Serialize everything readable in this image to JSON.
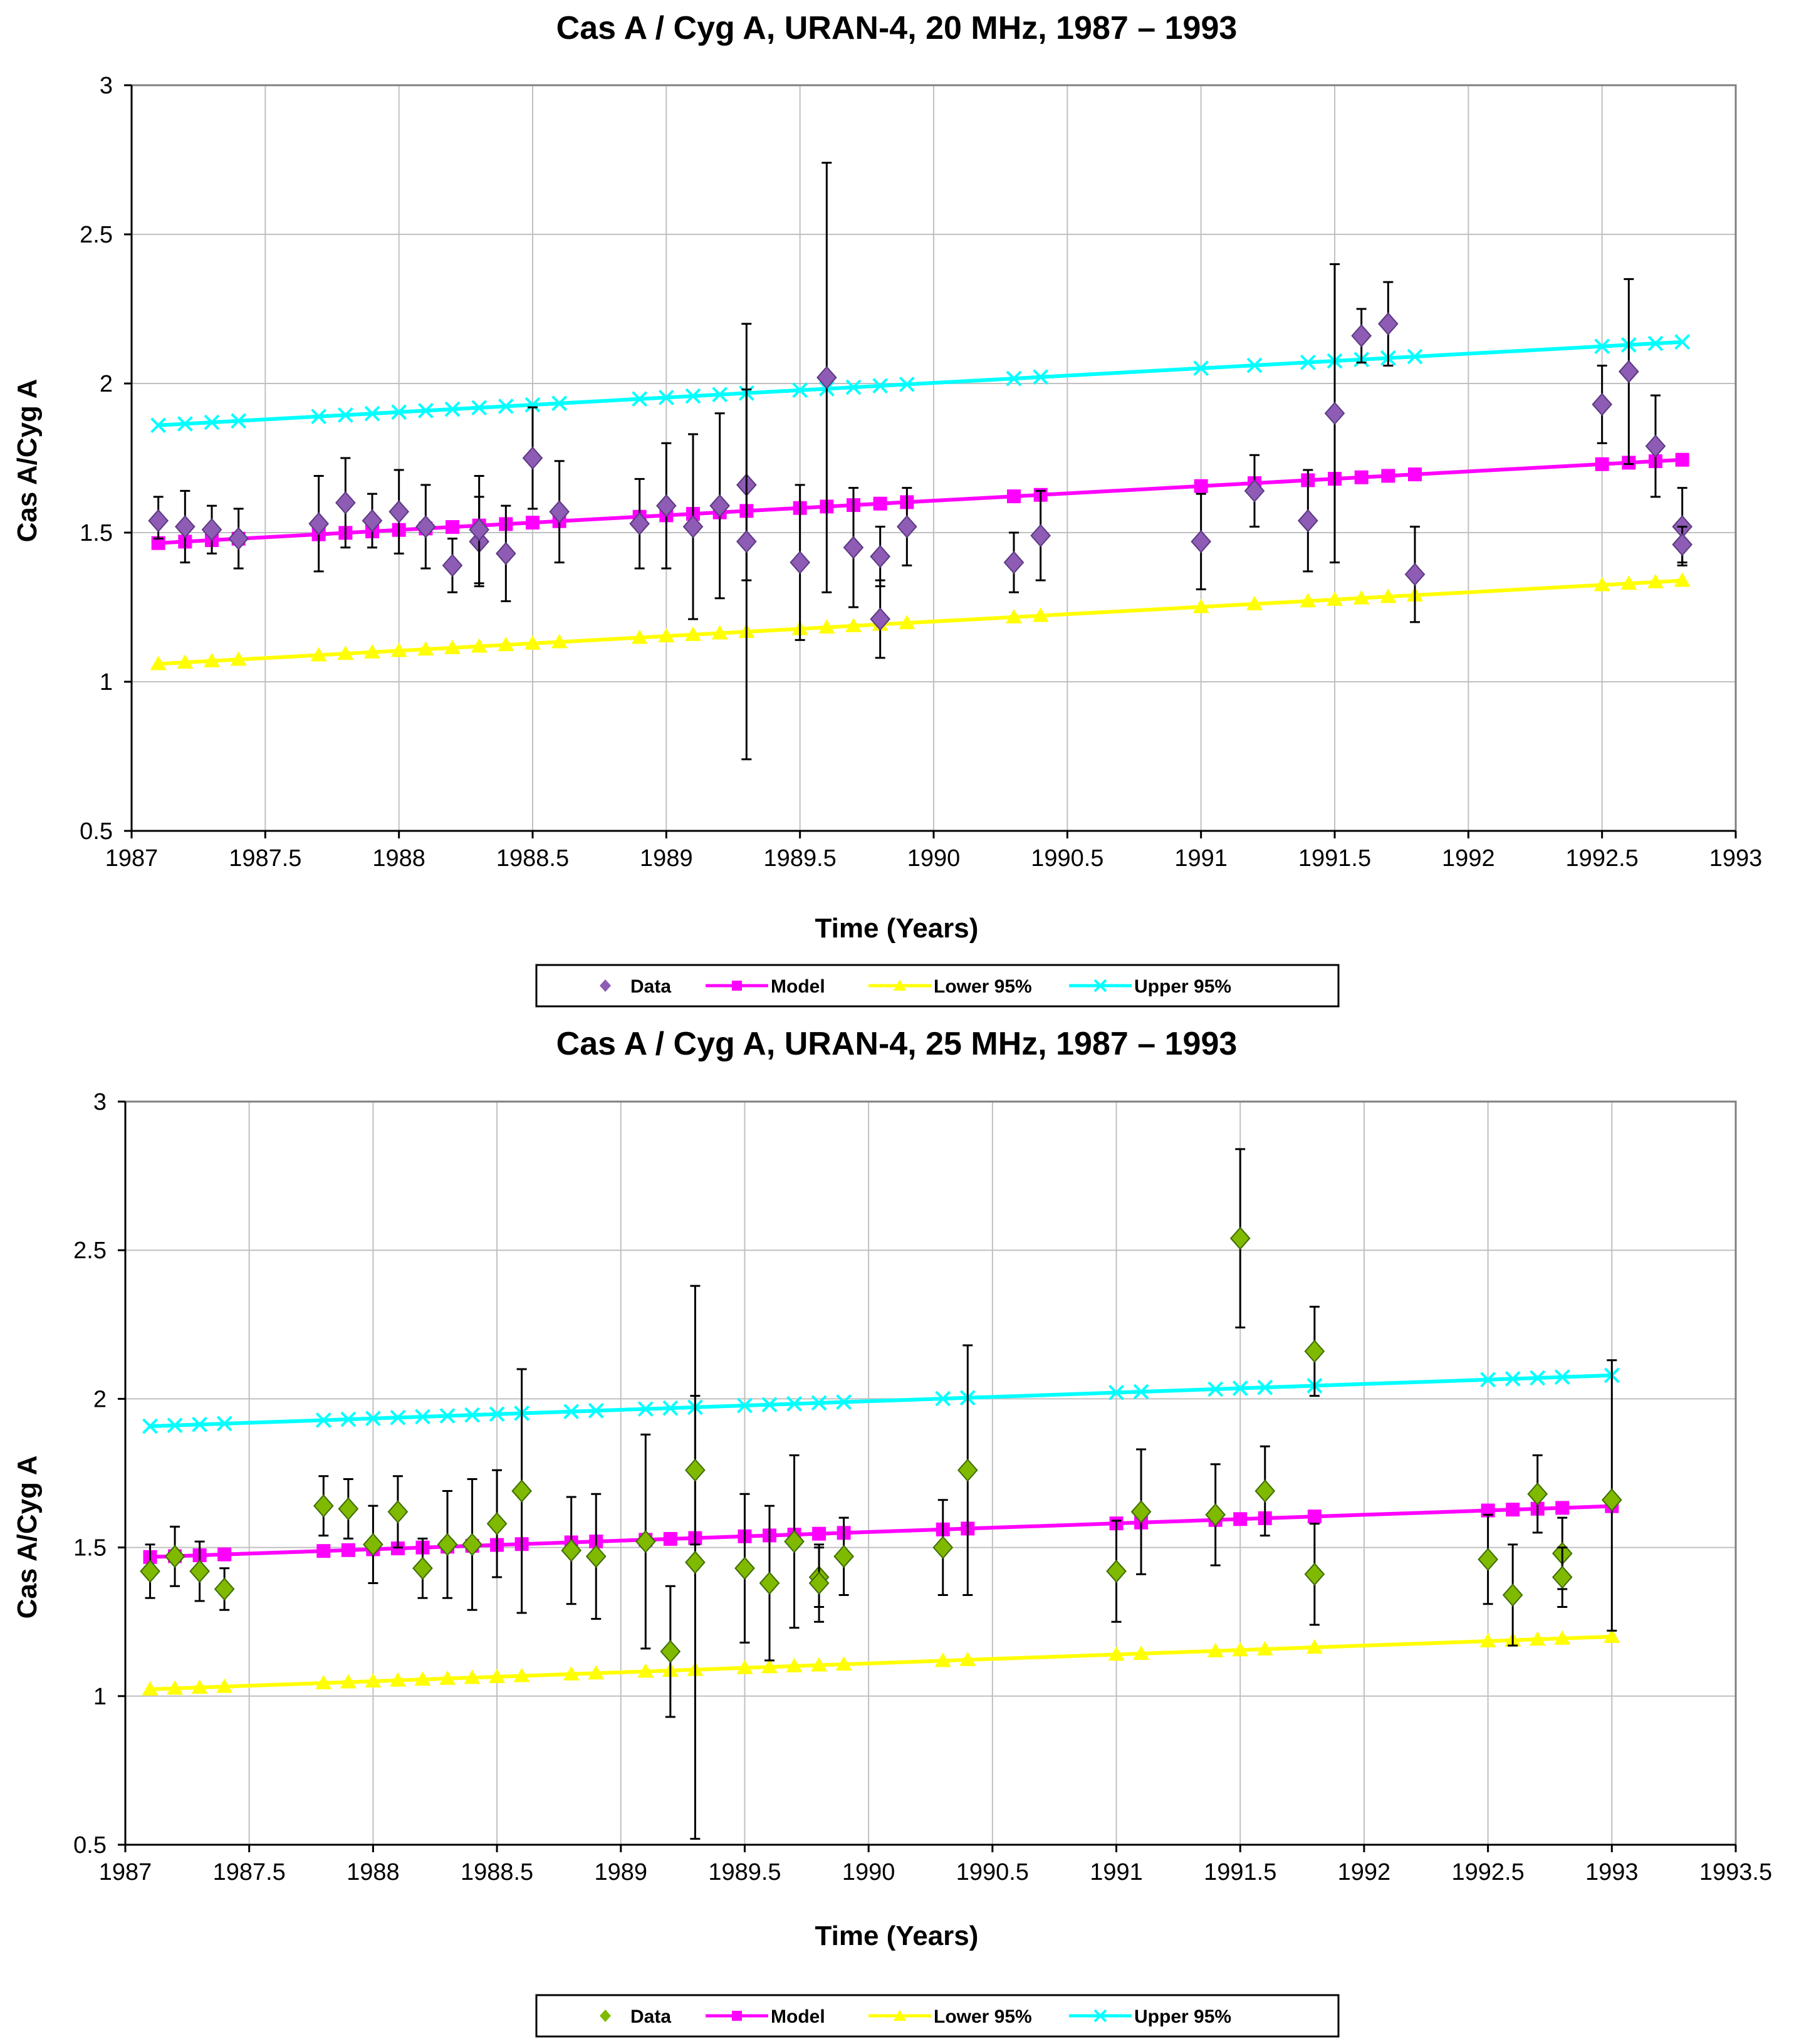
{
  "colors": {
    "data_top": "#8E5BB5",
    "data_bottom": "#7FBA00",
    "model": "#FF00FF",
    "lower": "#FFFF00",
    "upper": "#00FFFF",
    "grid": "#C0C0C0",
    "error_bar": "#000000"
  },
  "chart_data": [
    {
      "type": "scatter",
      "title": "Cas A / Cyg A, URAN-4, 20 MHz, 1987 – 1993",
      "xlabel": "Time (Years)",
      "ylabel": "Cas A/Cyg A",
      "xlim": [
        1987,
        1993
      ],
      "ylim": [
        0.5,
        3
      ],
      "xticks": [
        "1987",
        "1987.5",
        "1988",
        "1988.5",
        "1989",
        "1989.5",
        "1990",
        "1990.5",
        "1991",
        "1991.5",
        "1992",
        "1992.5",
        "1993"
      ],
      "yticks": [
        "0.5",
        "1",
        "1.5",
        "2",
        "2.5",
        "3"
      ],
      "grid": true,
      "legend": [
        "Data",
        "Model",
        "Lower 95%",
        "Upper 95%"
      ],
      "legend_position": "bottom",
      "data_points": [
        {
          "x": 1987.1,
          "y": 1.54,
          "lo": 1.48,
          "hi": 1.62
        },
        {
          "x": 1987.2,
          "y": 1.52,
          "lo": 1.4,
          "hi": 1.64
        },
        {
          "x": 1987.3,
          "y": 1.51,
          "lo": 1.43,
          "hi": 1.59
        },
        {
          "x": 1987.4,
          "y": 1.48,
          "lo": 1.38,
          "hi": 1.58
        },
        {
          "x": 1987.7,
          "y": 1.53,
          "lo": 1.37,
          "hi": 1.69
        },
        {
          "x": 1987.8,
          "y": 1.6,
          "lo": 1.45,
          "hi": 1.75
        },
        {
          "x": 1987.9,
          "y": 1.54,
          "lo": 1.45,
          "hi": 1.63
        },
        {
          "x": 1988.0,
          "y": 1.57,
          "lo": 1.43,
          "hi": 1.71
        },
        {
          "x": 1988.1,
          "y": 1.52,
          "lo": 1.38,
          "hi": 1.66
        },
        {
          "x": 1988.2,
          "y": 1.39,
          "lo": 1.3,
          "hi": 1.48
        },
        {
          "x": 1988.3,
          "y": 1.47,
          "lo": 1.32,
          "hi": 1.62
        },
        {
          "x": 1988.3,
          "y": 1.51,
          "lo": 1.33,
          "hi": 1.69
        },
        {
          "x": 1988.4,
          "y": 1.43,
          "lo": 1.27,
          "hi": 1.59
        },
        {
          "x": 1988.5,
          "y": 1.75,
          "lo": 1.58,
          "hi": 1.92
        },
        {
          "x": 1988.6,
          "y": 1.57,
          "lo": 1.4,
          "hi": 1.74
        },
        {
          "x": 1988.9,
          "y": 1.53,
          "lo": 1.38,
          "hi": 1.68
        },
        {
          "x": 1989.0,
          "y": 1.59,
          "lo": 1.38,
          "hi": 1.8
        },
        {
          "x": 1989.1,
          "y": 1.52,
          "lo": 1.21,
          "hi": 1.83
        },
        {
          "x": 1989.2,
          "y": 1.59,
          "lo": 1.28,
          "hi": 1.9
        },
        {
          "x": 1989.3,
          "y": 1.66,
          "lo": 1.34,
          "hi": 1.98
        },
        {
          "x": 1989.3,
          "y": 1.47,
          "lo": 0.74,
          "hi": 2.2
        },
        {
          "x": 1989.5,
          "y": 1.4,
          "lo": 1.14,
          "hi": 1.66
        },
        {
          "x": 1989.6,
          "y": 2.02,
          "lo": 1.3,
          "hi": 2.74
        },
        {
          "x": 1989.7,
          "y": 1.45,
          "lo": 1.25,
          "hi": 1.65
        },
        {
          "x": 1989.8,
          "y": 1.42,
          "lo": 1.32,
          "hi": 1.52
        },
        {
          "x": 1989.8,
          "y": 1.21,
          "lo": 1.08,
          "hi": 1.34
        },
        {
          "x": 1989.9,
          "y": 1.52,
          "lo": 1.39,
          "hi": 1.65
        },
        {
          "x": 1990.3,
          "y": 1.4,
          "lo": 1.3,
          "hi": 1.5
        },
        {
          "x": 1990.4,
          "y": 1.49,
          "lo": 1.34,
          "hi": 1.64
        },
        {
          "x": 1991.0,
          "y": 1.47,
          "lo": 1.31,
          "hi": 1.63
        },
        {
          "x": 1991.2,
          "y": 1.64,
          "lo": 1.52,
          "hi": 1.76
        },
        {
          "x": 1991.4,
          "y": 1.54,
          "lo": 1.37,
          "hi": 1.71
        },
        {
          "x": 1991.5,
          "y": 1.9,
          "lo": 1.4,
          "hi": 2.4
        },
        {
          "x": 1991.6,
          "y": 2.16,
          "lo": 2.07,
          "hi": 2.25
        },
        {
          "x": 1991.7,
          "y": 2.2,
          "lo": 2.06,
          "hi": 2.34
        },
        {
          "x": 1991.8,
          "y": 1.36,
          "lo": 1.2,
          "hi": 1.52
        },
        {
          "x": 1992.5,
          "y": 1.93,
          "lo": 1.8,
          "hi": 2.06
        },
        {
          "x": 1992.6,
          "y": 2.04,
          "lo": 1.73,
          "hi": 2.35
        },
        {
          "x": 1992.7,
          "y": 1.79,
          "lo": 1.62,
          "hi": 1.96
        },
        {
          "x": 1992.8,
          "y": 1.52,
          "lo": 1.39,
          "hi": 1.65
        },
        {
          "x": 1992.8,
          "y": 1.46,
          "lo": 1.4,
          "hi": 1.52
        }
      ],
      "model_x": [
        1987.1,
        1987.2,
        1987.3,
        1987.4,
        1987.7,
        1987.8,
        1987.9,
        1988.0,
        1988.1,
        1988.2,
        1988.3,
        1988.4,
        1988.5,
        1988.6,
        1988.9,
        1989.0,
        1989.1,
        1989.2,
        1989.3,
        1989.5,
        1989.6,
        1989.7,
        1989.8,
        1989.9,
        1990.3,
        1990.4,
        1991.0,
        1991.2,
        1991.4,
        1991.5,
        1991.6,
        1991.7,
        1991.8,
        1992.5,
        1992.6,
        1992.7,
        1992.8
      ],
      "model": {
        "intercept_at_1987": 1.46,
        "slope_per_year": 0.049
      },
      "lower": {
        "intercept_at_1987": 1.055,
        "slope_per_year": 0.049
      },
      "upper": {
        "intercept_at_1987": 1.855,
        "slope_per_year": 0.049
      }
    },
    {
      "type": "scatter",
      "title": "Cas A / Cyg A, URAN-4, 25 MHz, 1987 – 1993",
      "xlabel": "Time (Years)",
      "ylabel": "Cas A/Cyg A",
      "xlim": [
        1987,
        1993.5
      ],
      "ylim": [
        0.5,
        3
      ],
      "xticks": [
        "1987",
        "1987.5",
        "1988",
        "1988.5",
        "1989",
        "1989.5",
        "1990",
        "1990.5",
        "1991",
        "1991.5",
        "1992",
        "1992.5",
        "1993",
        "1993.5"
      ],
      "yticks": [
        "0.5",
        "1",
        "1.5",
        "2",
        "2.5",
        "3"
      ],
      "grid": true,
      "legend": [
        "Data",
        "Model",
        "Lower 95%",
        "Upper 95%"
      ],
      "legend_position": "bottom",
      "data_points": [
        {
          "x": 1987.1,
          "y": 1.42,
          "lo": 1.33,
          "hi": 1.51
        },
        {
          "x": 1987.2,
          "y": 1.47,
          "lo": 1.37,
          "hi": 1.57
        },
        {
          "x": 1987.3,
          "y": 1.42,
          "lo": 1.32,
          "hi": 1.52
        },
        {
          "x": 1987.4,
          "y": 1.36,
          "lo": 1.29,
          "hi": 1.43
        },
        {
          "x": 1987.8,
          "y": 1.64,
          "lo": 1.54,
          "hi": 1.74
        },
        {
          "x": 1987.9,
          "y": 1.63,
          "lo": 1.53,
          "hi": 1.73
        },
        {
          "x": 1988.0,
          "y": 1.51,
          "lo": 1.38,
          "hi": 1.64
        },
        {
          "x": 1988.1,
          "y": 1.62,
          "lo": 1.5,
          "hi": 1.74
        },
        {
          "x": 1988.2,
          "y": 1.43,
          "lo": 1.33,
          "hi": 1.53
        },
        {
          "x": 1988.3,
          "y": 1.51,
          "lo": 1.33,
          "hi": 1.69
        },
        {
          "x": 1988.4,
          "y": 1.51,
          "lo": 1.29,
          "hi": 1.73
        },
        {
          "x": 1988.5,
          "y": 1.58,
          "lo": 1.4,
          "hi": 1.76
        },
        {
          "x": 1988.6,
          "y": 1.69,
          "lo": 1.28,
          "hi": 2.1
        },
        {
          "x": 1988.8,
          "y": 1.49,
          "lo": 1.31,
          "hi": 1.67
        },
        {
          "x": 1988.9,
          "y": 1.47,
          "lo": 1.26,
          "hi": 1.68
        },
        {
          "x": 1989.1,
          "y": 1.52,
          "lo": 1.16,
          "hi": 1.88
        },
        {
          "x": 1989.2,
          "y": 1.15,
          "lo": 0.93,
          "hi": 1.37
        },
        {
          "x": 1989.3,
          "y": 1.45,
          "lo": 0.52,
          "hi": 2.38
        },
        {
          "x": 1989.3,
          "y": 1.76,
          "lo": 1.51,
          "hi": 2.01
        },
        {
          "x": 1989.5,
          "y": 1.43,
          "lo": 1.18,
          "hi": 1.68
        },
        {
          "x": 1989.6,
          "y": 1.38,
          "lo": 1.12,
          "hi": 1.64
        },
        {
          "x": 1989.7,
          "y": 1.52,
          "lo": 1.23,
          "hi": 1.81
        },
        {
          "x": 1989.8,
          "y": 1.4,
          "lo": 1.3,
          "hi": 1.5
        },
        {
          "x": 1989.8,
          "y": 1.38,
          "lo": 1.25,
          "hi": 1.51
        },
        {
          "x": 1989.9,
          "y": 1.47,
          "lo": 1.34,
          "hi": 1.6
        },
        {
          "x": 1990.3,
          "y": 1.5,
          "lo": 1.34,
          "hi": 1.66
        },
        {
          "x": 1990.4,
          "y": 1.76,
          "lo": 1.34,
          "hi": 2.18
        },
        {
          "x": 1991.0,
          "y": 1.42,
          "lo": 1.25,
          "hi": 1.59
        },
        {
          "x": 1991.1,
          "y": 1.62,
          "lo": 1.41,
          "hi": 1.83
        },
        {
          "x": 1991.4,
          "y": 1.61,
          "lo": 1.44,
          "hi": 1.78
        },
        {
          "x": 1991.5,
          "y": 2.54,
          "lo": 2.24,
          "hi": 2.84
        },
        {
          "x": 1991.6,
          "y": 1.69,
          "lo": 1.54,
          "hi": 1.84
        },
        {
          "x": 1991.8,
          "y": 2.16,
          "lo": 2.01,
          "hi": 2.31
        },
        {
          "x": 1991.8,
          "y": 1.41,
          "lo": 1.24,
          "hi": 1.58
        },
        {
          "x": 1992.5,
          "y": 1.46,
          "lo": 1.31,
          "hi": 1.61
        },
        {
          "x": 1992.6,
          "y": 1.34,
          "lo": 1.17,
          "hi": 1.51
        },
        {
          "x": 1992.7,
          "y": 1.68,
          "lo": 1.55,
          "hi": 1.81
        },
        {
          "x": 1992.8,
          "y": 1.48,
          "lo": 1.36,
          "hi": 1.6
        },
        {
          "x": 1992.8,
          "y": 1.4,
          "lo": 1.3,
          "hi": 1.5
        },
        {
          "x": 1993.0,
          "y": 1.66,
          "lo": 1.22,
          "hi": 2.13
        }
      ],
      "model_x": [
        1987.1,
        1987.2,
        1987.3,
        1987.4,
        1987.8,
        1987.9,
        1988.0,
        1988.1,
        1988.2,
        1988.3,
        1988.4,
        1988.5,
        1988.6,
        1988.8,
        1988.9,
        1989.1,
        1989.2,
        1989.3,
        1989.5,
        1989.6,
        1989.7,
        1989.8,
        1989.9,
        1990.3,
        1990.4,
        1991.0,
        1991.1,
        1991.4,
        1991.5,
        1991.6,
        1991.8,
        1992.5,
        1992.6,
        1992.7,
        1992.8,
        1993.0
      ],
      "model": {
        "intercept_at_1987": 1.465,
        "slope_per_year": 0.029
      },
      "lower": {
        "intercept_at_1987": 1.02,
        "slope_per_year": 0.03
      },
      "upper": {
        "intercept_at_1987": 1.905,
        "slope_per_year": 0.029
      }
    }
  ]
}
